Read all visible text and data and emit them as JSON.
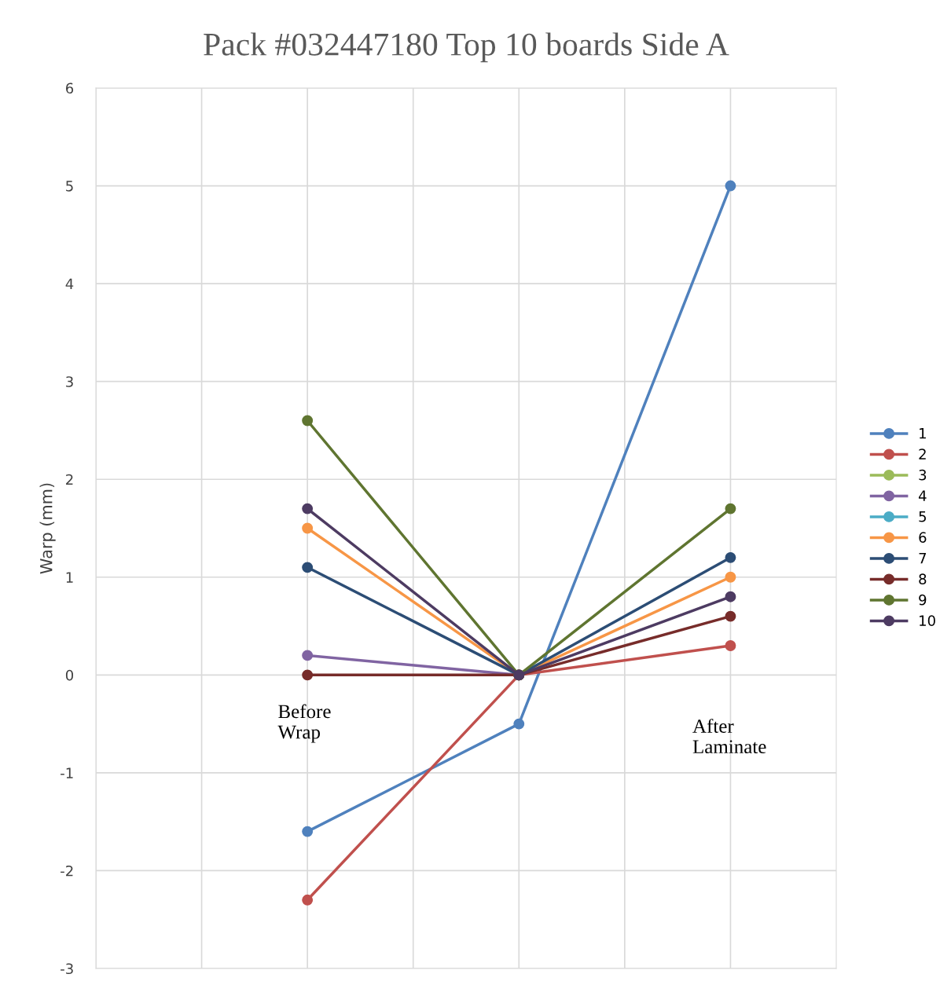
{
  "chart_data": {
    "type": "line",
    "title": "Pack #032447180 Top 10 boards Side A",
    "ylabel": "Warp (mm)",
    "categories": [
      null,
      null,
      null
    ],
    "annotations": [
      "Before\nWrap",
      "After\nLaminate"
    ],
    "ylim": [
      -3,
      6
    ],
    "yticks": [
      -3,
      -2,
      -1,
      0,
      1,
      2,
      3,
      4,
      5,
      6
    ],
    "grid": true,
    "legend": "right",
    "marker": "circle",
    "line_style": "solid",
    "tick_labels": "y",
    "series": [
      {
        "name": "1",
        "color": "#4f81bd",
        "values": [
          -1.6,
          -0.5,
          5
        ]
      },
      {
        "name": "2",
        "color": "#c0504d",
        "values": [
          -2.3,
          0,
          0.3
        ]
      },
      {
        "name": "3",
        "color": "#9bbb59",
        "values": [
          null,
          null,
          null
        ]
      },
      {
        "name": "4",
        "color": "#8064a2",
        "values": [
          0.2,
          0,
          null
        ]
      },
      {
        "name": "5",
        "color": "#4bacc6",
        "values": [
          null,
          null,
          null
        ]
      },
      {
        "name": "6",
        "color": "#f79646",
        "values": [
          1.5,
          0,
          1
        ]
      },
      {
        "name": "7",
        "color": "#2c4d75",
        "values": [
          1.1,
          0,
          1.2
        ]
      },
      {
        "name": "8",
        "color": "#772c2a",
        "values": [
          0,
          0,
          0.6
        ]
      },
      {
        "name": "9",
        "color": "#5f7530",
        "values": [
          2.6,
          0,
          1.7
        ]
      },
      {
        "name": "10",
        "color": "#4d3b62",
        "values": [
          1.7,
          0,
          0.8
        ]
      }
    ]
  }
}
